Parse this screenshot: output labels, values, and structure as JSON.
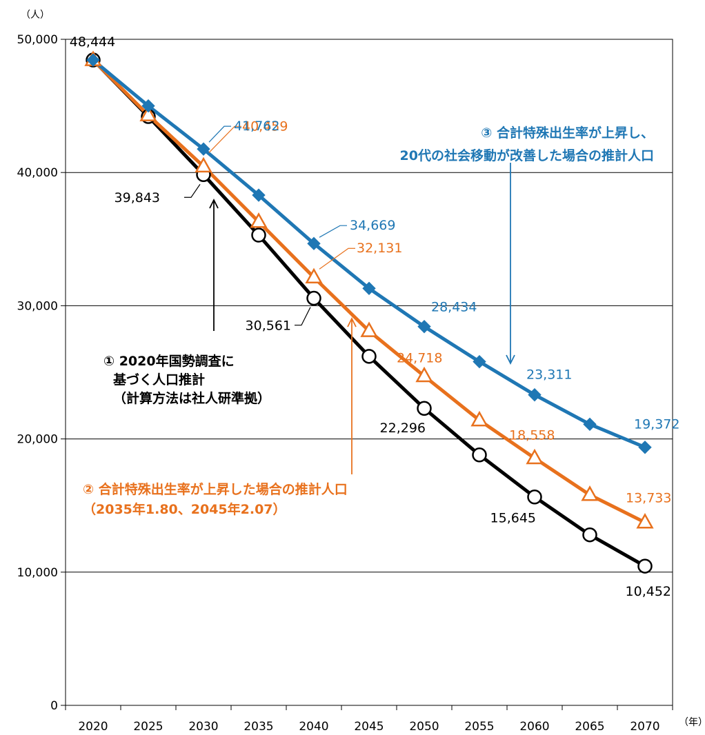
{
  "chart_data": {
    "type": "line",
    "y_unit": "（人）",
    "x_unit": "（年）",
    "x": [
      2020,
      2025,
      2030,
      2035,
      2040,
      2045,
      2050,
      2055,
      2060,
      2065,
      2070
    ],
    "ylim": [
      0,
      50000
    ],
    "yticks": [
      "0",
      "10,000",
      "20,000",
      "30,000",
      "40,000",
      "50,000"
    ],
    "grid": true,
    "series": [
      {
        "key": "s1",
        "color": "#000000",
        "marker": "circle",
        "values": [
          48444,
          44200,
          39843,
          35300,
          30561,
          26200,
          22296,
          18800,
          15645,
          12800,
          10452
        ],
        "annotation": [
          "① 2020年国勢調査に",
          "基づく人口推計",
          "（計算方法は社人研準拠）"
        ]
      },
      {
        "key": "s2",
        "color": "#e8711d",
        "marker": "triangle",
        "values": [
          48444,
          44300,
          40459,
          36300,
          32131,
          28100,
          24718,
          21400,
          18558,
          15800,
          13733
        ],
        "annotation": [
          "② 合計特殊出生率が上昇した場合の推計人口",
          "（2035年1.80、2045年2.07）"
        ]
      },
      {
        "key": "s3",
        "color": "#1f77b4",
        "marker": "diamond",
        "values": [
          48444,
          45000,
          41762,
          38300,
          34669,
          31300,
          28434,
          25800,
          23311,
          21100,
          19372
        ],
        "annotation": [
          "③ 合計特殊出生率が上昇し、",
          "20代の社会移動が改善した場合の推計人口"
        ]
      }
    ],
    "data_labels": {
      "s1": {
        "0": "48,444",
        "2": "39,843",
        "4": "30,561",
        "6": "22,296",
        "8": "15,645",
        "10": "10,452"
      },
      "s2": {
        "2": "40,459",
        "4": "32,131",
        "6": "24,718",
        "8": "18,558",
        "10": "13,733"
      },
      "s3": {
        "2": "41,762",
        "4": "34,669",
        "6": "28,434",
        "8": "23,311",
        "10": "19,372"
      }
    }
  }
}
